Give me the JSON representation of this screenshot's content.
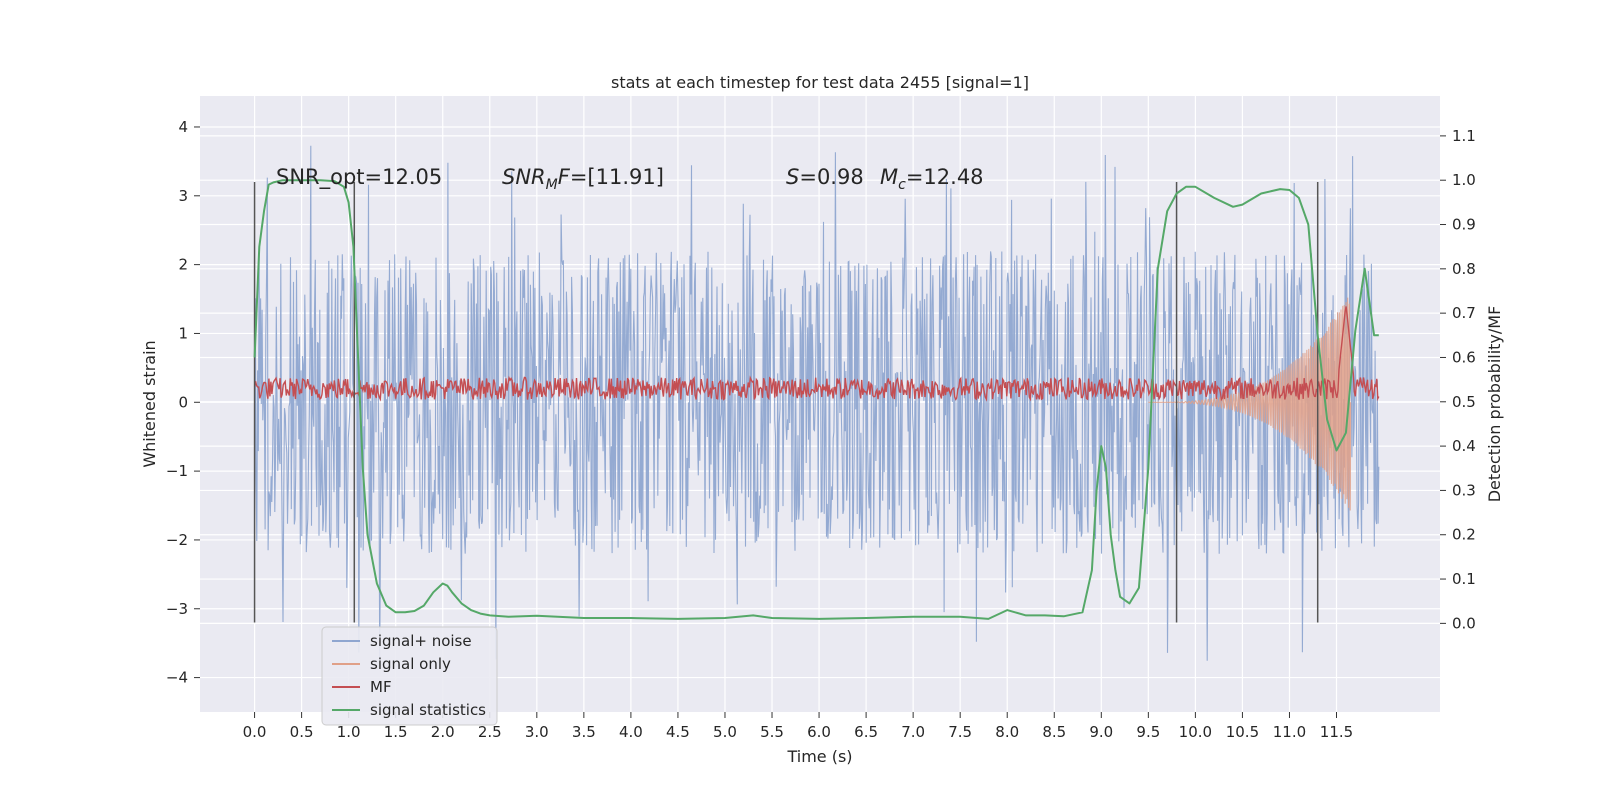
{
  "colors": {
    "background": "#eaeaf2",
    "grid": "#ffffff",
    "signal_noise": "#8fa6d0",
    "signal_only": "#e0a088",
    "mf": "#c44e52",
    "signal_statistics": "#55a868",
    "vline": "#555555"
  },
  "chart_data": {
    "type": "line",
    "title": "stats at each timestep for test data 2455 [signal=1]",
    "xlabel": "Time (s)",
    "ylabel_left": "Whitened strain",
    "ylabel_right": "Detection probability/MF",
    "xlim": [
      -0.58,
      12.6
    ],
    "ylim_left": [
      -4.5,
      4.45
    ],
    "ylim_right": [
      -0.2,
      1.19
    ],
    "x_ticks": [
      "0.0",
      "0.5",
      "1.0",
      "1.5",
      "2.0",
      "2.5",
      "3.0",
      "3.5",
      "4.0",
      "4.5",
      "5.0",
      "5.5",
      "6.0",
      "6.5",
      "7.0",
      "7.5",
      "8.0",
      "8.5",
      "9.0",
      "9.5",
      "10.0",
      "10.5",
      "11.0",
      "11.5"
    ],
    "y_ticks_left": [
      "−4",
      "−3",
      "−2",
      "−1",
      "0",
      "1",
      "2",
      "3",
      "4"
    ],
    "y_ticks_right": [
      "0.0",
      "0.1",
      "0.2",
      "0.3",
      "0.4",
      "0.5",
      "0.6",
      "0.7",
      "0.8",
      "0.9",
      "1.0",
      "1.1"
    ],
    "grid": true,
    "legend_position": "lower-left",
    "legend": [
      "signal+ noise",
      "signal only",
      "MF",
      "signal statistics"
    ],
    "annotations": {
      "snr_opt": "SNR_opt=12.05",
      "snr_mf": "=[11.91]",
      "s": "=0.98",
      "mc": "=12.48"
    },
    "vertical_lines_x": [
      0.0,
      1.06,
      9.8,
      11.3
    ],
    "series": [
      {
        "name": "signal+ noise",
        "x_range": [
          0.0,
          11.95
        ],
        "typical_amplitude": 2.0,
        "max": 4.05,
        "min": -4.05
      },
      {
        "name": "signal only",
        "x_range": [
          9.5,
          11.65
        ],
        "peak_amplitude": 1.6
      },
      {
        "name": "MF",
        "x_range": [
          0.0,
          11.95
        ],
        "baseline_right_axis": 0.5,
        "level_right_axis": 0.53,
        "peak_x": 11.6,
        "peak_right_axis": 0.72
      },
      {
        "name": "signal statistics",
        "axis": "right",
        "x": [
          0.0,
          0.05,
          0.1,
          0.15,
          0.2,
          0.3,
          0.5,
          0.7,
          0.85,
          0.95,
          1.0,
          1.05,
          1.1,
          1.15,
          1.2,
          1.3,
          1.4,
          1.5,
          1.6,
          1.7,
          1.8,
          1.9,
          2.0,
          2.05,
          2.1,
          2.2,
          2.3,
          2.4,
          2.5,
          2.7,
          3.0,
          3.5,
          4.0,
          4.5,
          5.0,
          5.3,
          5.5,
          6.0,
          6.5,
          7.0,
          7.5,
          7.8,
          8.0,
          8.2,
          8.4,
          8.6,
          8.8,
          8.9,
          8.95,
          9.0,
          9.05,
          9.1,
          9.15,
          9.2,
          9.3,
          9.4,
          9.5,
          9.6,
          9.7,
          9.8,
          9.9,
          10.0,
          10.2,
          10.4,
          10.5,
          10.7,
          10.9,
          11.0,
          11.1,
          11.2,
          11.3,
          11.4,
          11.5,
          11.6,
          11.7,
          11.8,
          11.9,
          11.95
        ],
        "y": [
          0.6,
          0.85,
          0.93,
          0.99,
          0.995,
          1.0,
          1.0,
          1.0,
          0.998,
          0.985,
          0.95,
          0.85,
          0.6,
          0.35,
          0.2,
          0.09,
          0.04,
          0.025,
          0.025,
          0.028,
          0.04,
          0.07,
          0.09,
          0.085,
          0.07,
          0.045,
          0.03,
          0.022,
          0.018,
          0.015,
          0.017,
          0.012,
          0.012,
          0.01,
          0.012,
          0.018,
          0.012,
          0.01,
          0.012,
          0.015,
          0.015,
          0.01,
          0.03,
          0.018,
          0.018,
          0.016,
          0.025,
          0.12,
          0.3,
          0.4,
          0.35,
          0.2,
          0.12,
          0.06,
          0.045,
          0.08,
          0.35,
          0.8,
          0.93,
          0.97,
          0.985,
          0.985,
          0.96,
          0.94,
          0.945,
          0.97,
          0.98,
          0.978,
          0.96,
          0.9,
          0.65,
          0.46,
          0.39,
          0.43,
          0.66,
          0.8,
          0.65,
          0.65
        ]
      }
    ]
  }
}
